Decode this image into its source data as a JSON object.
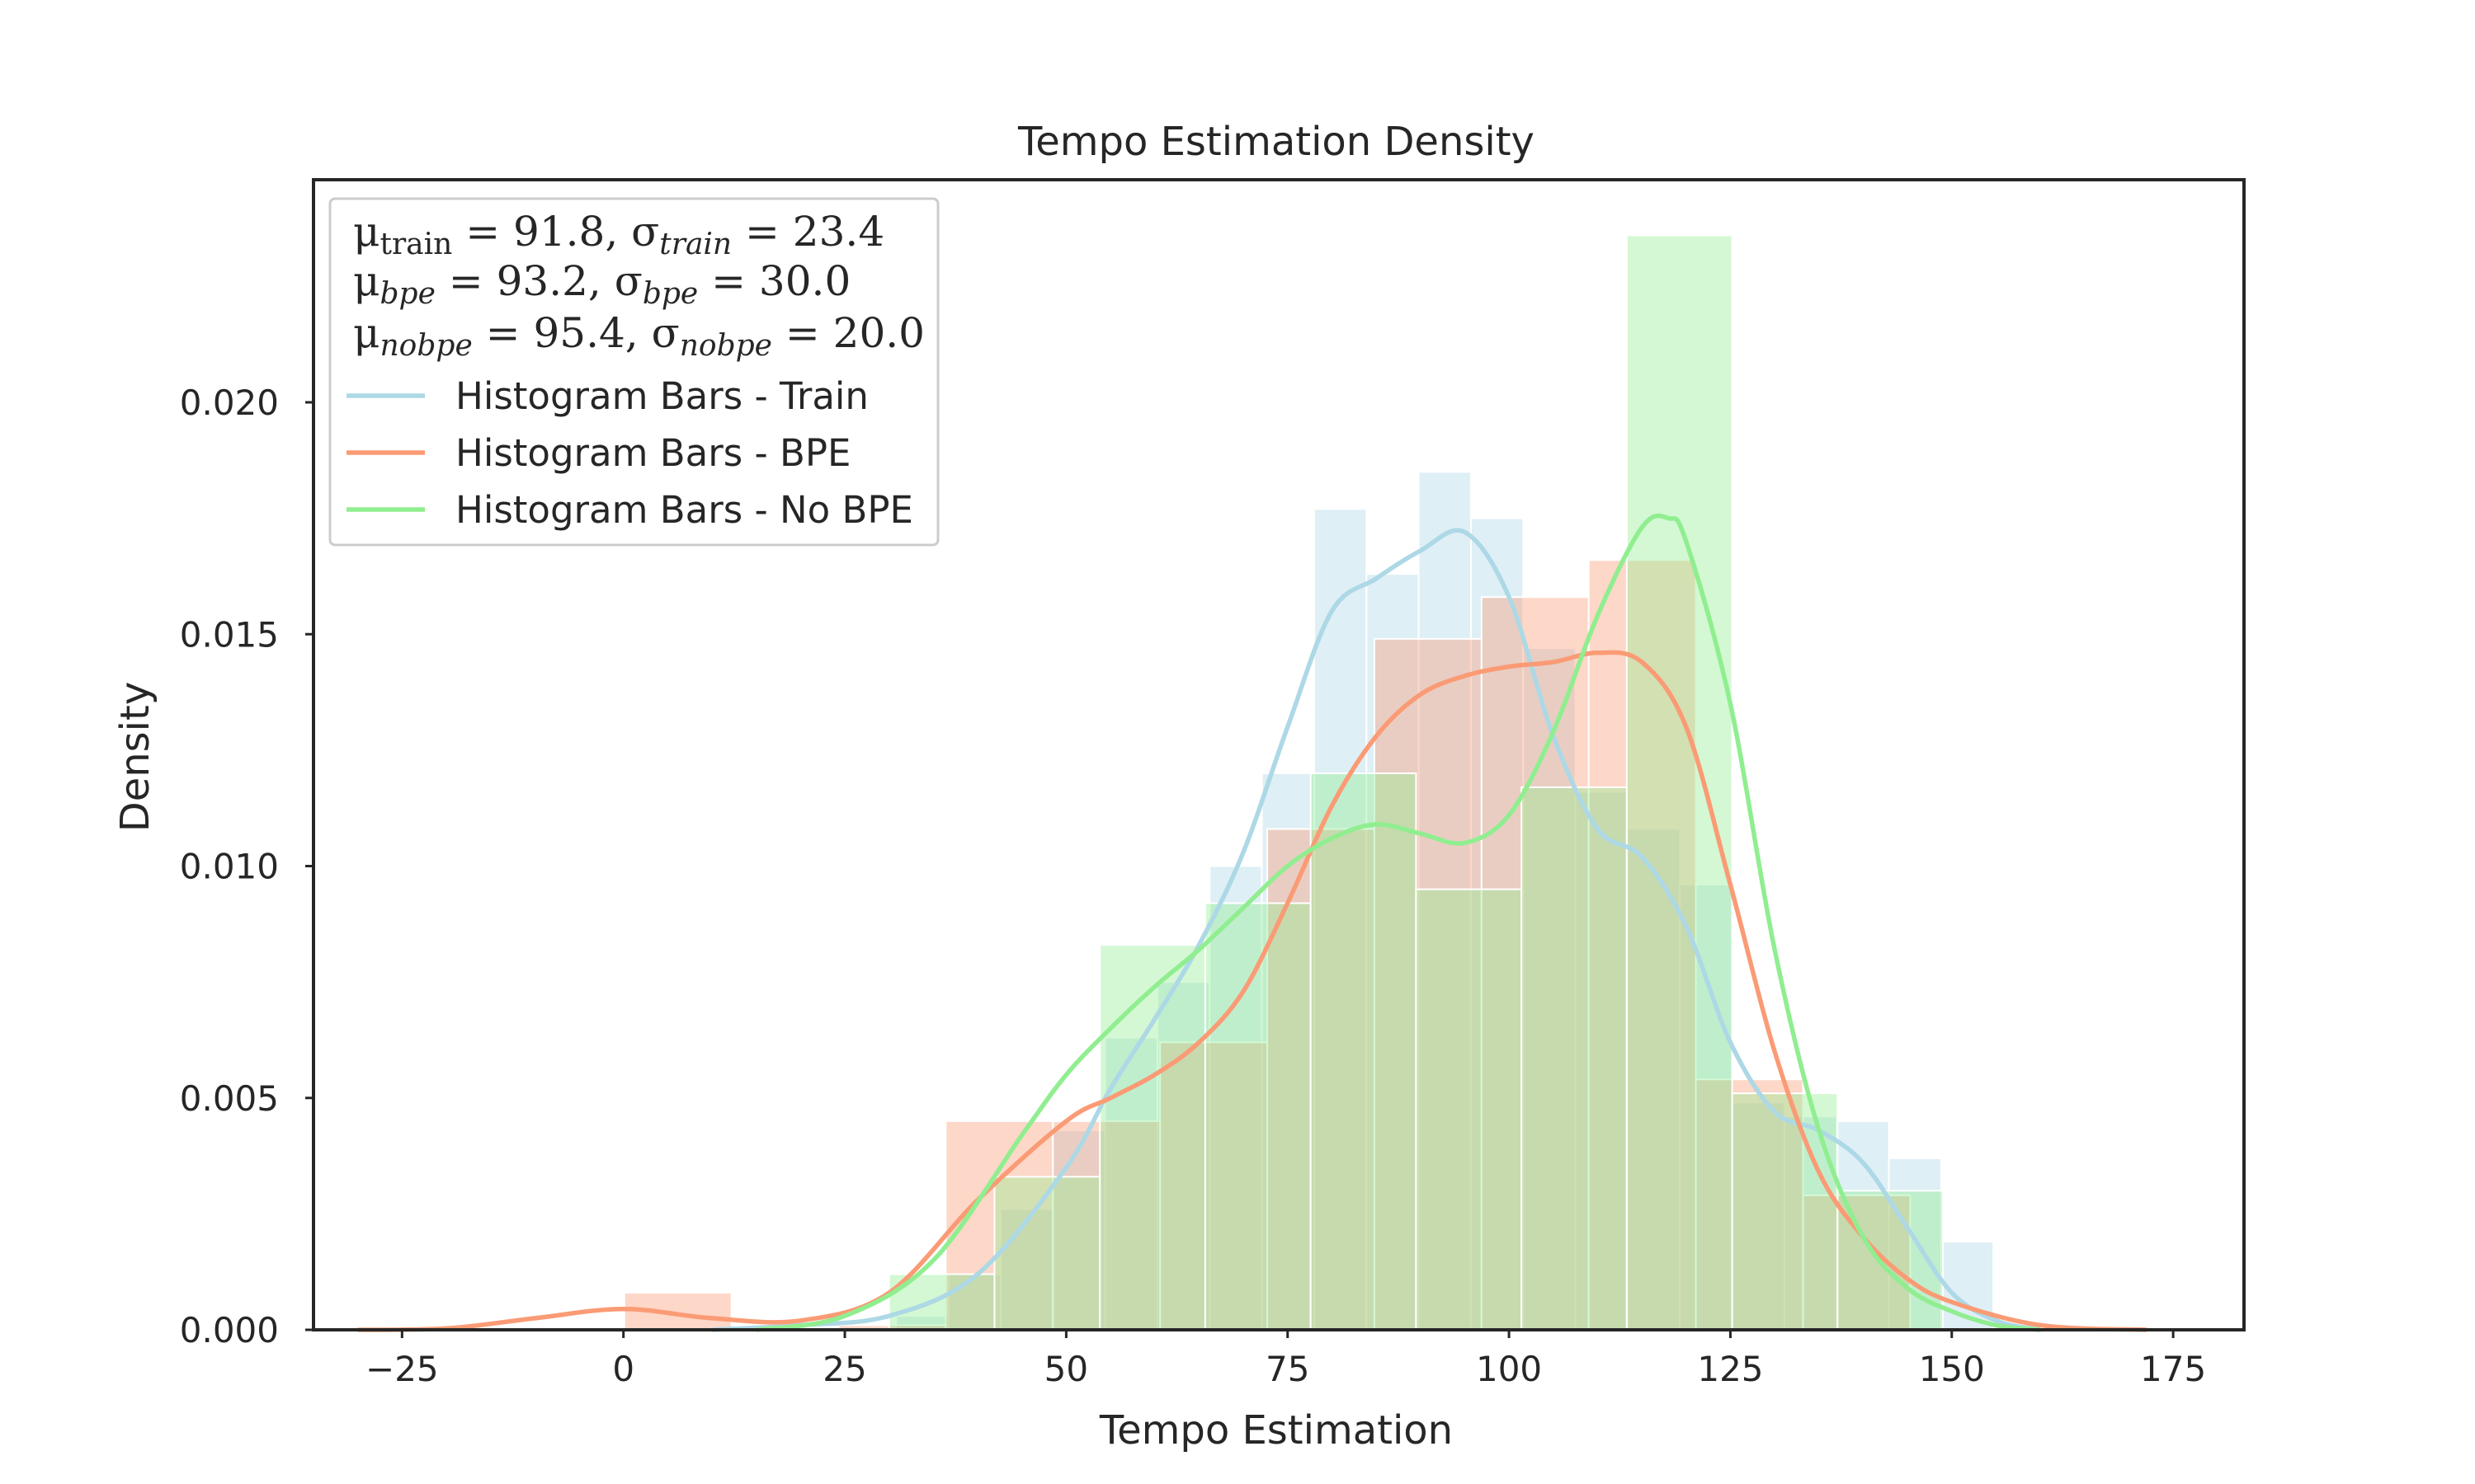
{
  "chart_data": {
    "type": "histogram",
    "title": "Tempo Estimation Density",
    "xlabel": "Tempo Estimation",
    "ylabel": "Density",
    "xlim": [
      -35,
      183
    ],
    "ylim": [
      0,
      0.0248
    ],
    "xticks": [
      -25,
      0,
      25,
      50,
      75,
      100,
      125,
      150,
      175
    ],
    "xtick_labels": [
      "−25",
      "0",
      "25",
      "50",
      "75",
      "100",
      "125",
      "150",
      "175"
    ],
    "yticks": [
      0.0,
      0.005,
      0.01,
      0.015,
      0.02
    ],
    "ytick_labels": [
      "0.000",
      "0.005",
      "0.010",
      "0.015",
      "0.020"
    ],
    "grid": false,
    "legend_position": "upper-left",
    "stats_lines": [
      {
        "mu_sub": "train",
        "mu": "91.8",
        "sigma_sub": "train",
        "sigma": "23.4"
      },
      {
        "mu_sub": "bpe",
        "mu": "93.2",
        "sigma_sub": "bpe",
        "sigma": "30.0"
      },
      {
        "mu_sub": "nobpe",
        "mu": "95.4",
        "sigma_sub": "nobpe",
        "sigma": "20.0"
      }
    ],
    "series": [
      {
        "name": "Histogram Bars - Train",
        "color": "#add8e6",
        "bin_width": 5.9,
        "bin_edges_start": 30.8,
        "hist": [
          0.0003,
          0.0012,
          0.0026,
          0.0043,
          0.0063,
          0.0075,
          0.01,
          0.012,
          0.0177,
          0.0163,
          0.0185,
          0.0175,
          0.0147,
          0.0116,
          0.0108,
          0.0096,
          0.0049,
          0.0046,
          0.0045,
          0.0037,
          0.0019
        ],
        "kde": [
          [
            10,
            0.0
          ],
          [
            20,
            0.0001
          ],
          [
            30,
            0.0003
          ],
          [
            40,
            0.0012
          ],
          [
            50,
            0.0035
          ],
          [
            55,
            0.0052
          ],
          [
            60,
            0.0067
          ],
          [
            65,
            0.0083
          ],
          [
            70,
            0.0103
          ],
          [
            75,
            0.013
          ],
          [
            80,
            0.0155
          ],
          [
            85,
            0.0162
          ],
          [
            90,
            0.0168
          ],
          [
            95,
            0.0172
          ],
          [
            100,
            0.0158
          ],
          [
            105,
            0.0128
          ],
          [
            110,
            0.0108
          ],
          [
            115,
            0.0102
          ],
          [
            120,
            0.0087
          ],
          [
            125,
            0.0062
          ],
          [
            130,
            0.0047
          ],
          [
            135,
            0.0043
          ],
          [
            140,
            0.0036
          ],
          [
            145,
            0.0022
          ],
          [
            150,
            0.0008
          ],
          [
            155,
            0.0002
          ],
          [
            160,
            0.0
          ]
        ]
      },
      {
        "name": "Histogram Bars - BPE",
        "color": "#fa9b75",
        "bin_width": 12.1,
        "bin_edges_start": 0.1,
        "hist": [
          0.0008,
          0.0,
          0.0001,
          0.0045,
          0.0045,
          0.0062,
          0.0108,
          0.0149,
          0.0158,
          0.0166,
          0.0054,
          0.0029
        ],
        "kde": [
          [
            -30,
            0.0
          ],
          [
            -20,
            3e-05
          ],
          [
            -10,
            0.00025
          ],
          [
            0,
            0.00045
          ],
          [
            10,
            0.00025
          ],
          [
            20,
            0.0002
          ],
          [
            30,
            0.0008
          ],
          [
            40,
            0.0028
          ],
          [
            50,
            0.0045
          ],
          [
            55,
            0.005
          ],
          [
            60,
            0.0055
          ],
          [
            65,
            0.0062
          ],
          [
            70,
            0.0073
          ],
          [
            75,
            0.0092
          ],
          [
            80,
            0.0113
          ],
          [
            85,
            0.0128
          ],
          [
            90,
            0.0137
          ],
          [
            95,
            0.0141
          ],
          [
            100,
            0.0143
          ],
          [
            105,
            0.0144
          ],
          [
            110,
            0.0146
          ],
          [
            115,
            0.0144
          ],
          [
            120,
            0.013
          ],
          [
            125,
            0.0096
          ],
          [
            130,
            0.006
          ],
          [
            135,
            0.0034
          ],
          [
            140,
            0.002
          ],
          [
            145,
            0.0011
          ],
          [
            150,
            0.0006
          ],
          [
            160,
            0.0001
          ],
          [
            172,
            0.0
          ]
        ]
      },
      {
        "name": "Histogram Bars - No BPE",
        "color": "#90ee90",
        "bin_width": 11.9,
        "bin_edges_start": 30.0,
        "hist": [
          0.0012,
          0.0033,
          0.0083,
          0.0092,
          0.012,
          0.0095,
          0.0117,
          0.0236,
          0.0051,
          0.003
        ],
        "kde": [
          [
            15,
            0.0
          ],
          [
            25,
            0.0003
          ],
          [
            35,
            0.0015
          ],
          [
            45,
            0.0042
          ],
          [
            50,
            0.0055
          ],
          [
            55,
            0.0065
          ],
          [
            60,
            0.0074
          ],
          [
            65,
            0.0082
          ],
          [
            70,
            0.0091
          ],
          [
            75,
            0.01
          ],
          [
            80,
            0.0106
          ],
          [
            85,
            0.0109
          ],
          [
            90,
            0.0107
          ],
          [
            95,
            0.0105
          ],
          [
            100,
            0.0111
          ],
          [
            105,
            0.0129
          ],
          [
            110,
            0.0154
          ],
          [
            115,
            0.0173
          ],
          [
            118,
            0.0175
          ],
          [
            120,
            0.017
          ],
          [
            125,
            0.0135
          ],
          [
            130,
            0.0082
          ],
          [
            135,
            0.0043
          ],
          [
            140,
            0.002
          ],
          [
            145,
            0.0009
          ],
          [
            150,
            0.0004
          ],
          [
            155,
            0.0001
          ],
          [
            160,
            0.0
          ]
        ]
      }
    ]
  }
}
